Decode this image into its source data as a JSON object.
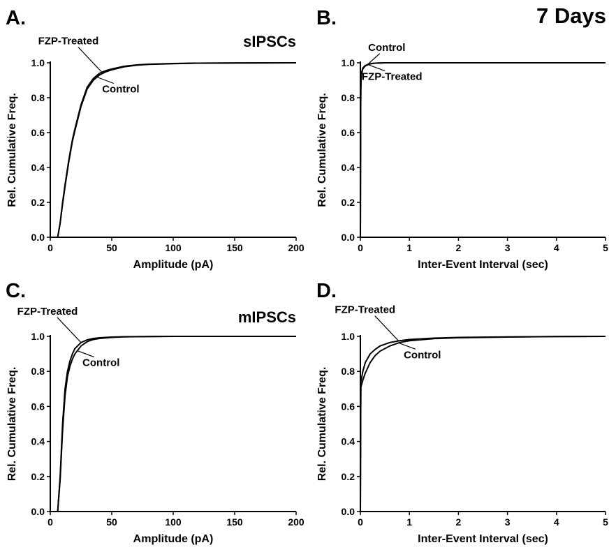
{
  "figure": {
    "title": "7 Days"
  },
  "chart_data": [
    {
      "panel": "A.",
      "tag": "sIPSCs",
      "type": "line",
      "xlabel": "Amplitude (pA)",
      "ylabel": "Rel. Cumulative Freq.",
      "xlim": [
        0,
        200
      ],
      "ylim": [
        0,
        1
      ],
      "xticks": [
        0,
        50,
        100,
        150,
        200
      ],
      "xtick_labels": [
        "0",
        "50",
        "100",
        "150",
        "200"
      ],
      "yticks": [
        0,
        0.2,
        0.4,
        0.6,
        0.8,
        1.0
      ],
      "ytick_labels": [
        "0.0",
        "0.2",
        "0.4",
        "0.6",
        "0.8",
        "1.0"
      ],
      "annotations": [
        {
          "text": "FZP-Treated",
          "series": 0,
          "point_x": 42,
          "side": "above-left"
        },
        {
          "text": "Control",
          "series": 1,
          "point_x": 38,
          "side": "below-right"
        }
      ],
      "series": [
        {
          "name": "FZP-Treated",
          "x": [
            6,
            8,
            10,
            12,
            15,
            18,
            20,
            25,
            30,
            35,
            40,
            45,
            50,
            60,
            70,
            80,
            100,
            120,
            150,
            200
          ],
          "y": [
            0,
            0.08,
            0.2,
            0.3,
            0.44,
            0.56,
            0.62,
            0.76,
            0.86,
            0.91,
            0.94,
            0.955,
            0.965,
            0.98,
            0.988,
            0.992,
            0.996,
            0.998,
            0.999,
            1.0
          ]
        },
        {
          "name": "Control",
          "x": [
            6,
            8,
            10,
            12,
            15,
            18,
            20,
            25,
            30,
            35,
            40,
            45,
            50,
            60,
            70,
            80,
            100,
            120,
            150,
            200
          ],
          "y": [
            0,
            0.08,
            0.19,
            0.29,
            0.43,
            0.55,
            0.61,
            0.75,
            0.85,
            0.9,
            0.93,
            0.948,
            0.96,
            0.977,
            0.986,
            0.991,
            0.995,
            0.998,
            0.999,
            1.0
          ]
        }
      ]
    },
    {
      "panel": "B.",
      "type": "line",
      "xlabel": "Inter-Event Interval (sec)",
      "ylabel": "Rel. Cumulative Freq.",
      "xlim": [
        0,
        5
      ],
      "ylim": [
        0,
        1
      ],
      "xticks": [
        0,
        1,
        2,
        3,
        4,
        5
      ],
      "xtick_labels": [
        "0",
        "1",
        "2",
        "3",
        "4",
        "5"
      ],
      "yticks": [
        0,
        0.2,
        0.4,
        0.6,
        0.8,
        1.0
      ],
      "ytick_labels": [
        "0.0",
        "0.2",
        "0.4",
        "0.6",
        "0.8",
        "1.0"
      ],
      "annotations": [
        {
          "text": "Control",
          "series": 0,
          "point_x": 0.14,
          "side": "above-right"
        },
        {
          "text": "FZP-Treated",
          "series": 1,
          "point_x": 0.16,
          "side": "below-right"
        }
      ],
      "series": [
        {
          "name": "Control",
          "x": [
            0,
            0.005,
            0.01,
            0.02,
            0.05,
            0.1,
            0.2,
            0.3,
            0.5,
            1,
            5
          ],
          "y": [
            0,
            0.7,
            0.88,
            0.94,
            0.97,
            0.985,
            0.995,
            0.998,
            1.0,
            1.0,
            1.0
          ]
        },
        {
          "name": "FZP-Treated",
          "x": [
            0,
            0.005,
            0.01,
            0.02,
            0.05,
            0.1,
            0.2,
            0.3,
            0.5,
            1,
            5
          ],
          "y": [
            0,
            0.68,
            0.86,
            0.93,
            0.965,
            0.982,
            0.994,
            0.998,
            1.0,
            1.0,
            1.0
          ]
        }
      ]
    },
    {
      "panel": "C.",
      "tag": "mIPSCs",
      "type": "line",
      "xlabel": "Amplitude (pA)",
      "ylabel": "Rel. Cumulative Freq.",
      "xlim": [
        0,
        200
      ],
      "ylim": [
        0,
        1
      ],
      "xticks": [
        0,
        50,
        100,
        150,
        200
      ],
      "xtick_labels": [
        "0",
        "50",
        "100",
        "150",
        "200"
      ],
      "yticks": [
        0,
        0.2,
        0.4,
        0.6,
        0.8,
        1.0
      ],
      "ytick_labels": [
        "0.0",
        "0.2",
        "0.4",
        "0.6",
        "0.8",
        "1.0"
      ],
      "annotations": [
        {
          "text": "FZP-Treated",
          "series": 0,
          "point_x": 25,
          "side": "above-left"
        },
        {
          "text": "Control",
          "series": 1,
          "point_x": 22,
          "side": "below-right"
        }
      ],
      "series": [
        {
          "name": "FZP-Treated",
          "x": [
            6,
            8,
            10,
            12,
            14,
            16,
            18,
            20,
            25,
            30,
            35,
            40,
            50,
            60,
            80,
            100,
            150,
            200
          ],
          "y": [
            0,
            0.2,
            0.5,
            0.7,
            0.8,
            0.86,
            0.9,
            0.93,
            0.965,
            0.98,
            0.988,
            0.992,
            0.996,
            0.998,
            0.999,
            1.0,
            1.0,
            1.0
          ]
        },
        {
          "name": "Control",
          "x": [
            6,
            8,
            10,
            12,
            14,
            16,
            18,
            20,
            25,
            30,
            35,
            40,
            50,
            60,
            80,
            100,
            150,
            200
          ],
          "y": [
            0,
            0.18,
            0.46,
            0.66,
            0.77,
            0.83,
            0.87,
            0.9,
            0.945,
            0.97,
            0.982,
            0.988,
            0.994,
            0.997,
            0.999,
            1.0,
            1.0,
            1.0
          ]
        }
      ]
    },
    {
      "panel": "D.",
      "type": "line",
      "xlabel": "Inter-Event Interval (sec)",
      "ylabel": "Rel. Cumulative Freq.",
      "xlim": [
        0,
        5
      ],
      "ylim": [
        0,
        1
      ],
      "xticks": [
        0,
        1,
        2,
        3,
        4,
        5
      ],
      "xtick_labels": [
        "0",
        "1",
        "2",
        "3",
        "4",
        "5"
      ],
      "yticks": [
        0,
        0.2,
        0.4,
        0.6,
        0.8,
        1.0
      ],
      "ytick_labels": [
        "0.0",
        "0.2",
        "0.4",
        "0.6",
        "0.8",
        "1.0"
      ],
      "annotations": [
        {
          "text": "FZP-Treated",
          "series": 0,
          "point_x": 0.78,
          "side": "above-left"
        },
        {
          "text": "Control",
          "series": 1,
          "point_x": 0.78,
          "side": "below-right"
        }
      ],
      "series": [
        {
          "name": "FZP-Treated",
          "x": [
            0,
            0.005,
            0.01,
            0.05,
            0.1,
            0.2,
            0.3,
            0.4,
            0.6,
            0.8,
            1.0,
            1.5,
            2,
            3,
            4,
            5
          ],
          "y": [
            0,
            0.5,
            0.74,
            0.8,
            0.85,
            0.9,
            0.925,
            0.945,
            0.965,
            0.975,
            0.982,
            0.99,
            0.994,
            0.997,
            0.999,
            1.0
          ]
        },
        {
          "name": "Control",
          "x": [
            0,
            0.005,
            0.01,
            0.05,
            0.1,
            0.2,
            0.3,
            0.4,
            0.6,
            0.8,
            1.0,
            1.5,
            2,
            3,
            4,
            5
          ],
          "y": [
            0,
            0.48,
            0.71,
            0.75,
            0.79,
            0.85,
            0.89,
            0.915,
            0.945,
            0.965,
            0.975,
            0.987,
            0.992,
            0.996,
            0.999,
            1.0
          ]
        }
      ]
    }
  ]
}
